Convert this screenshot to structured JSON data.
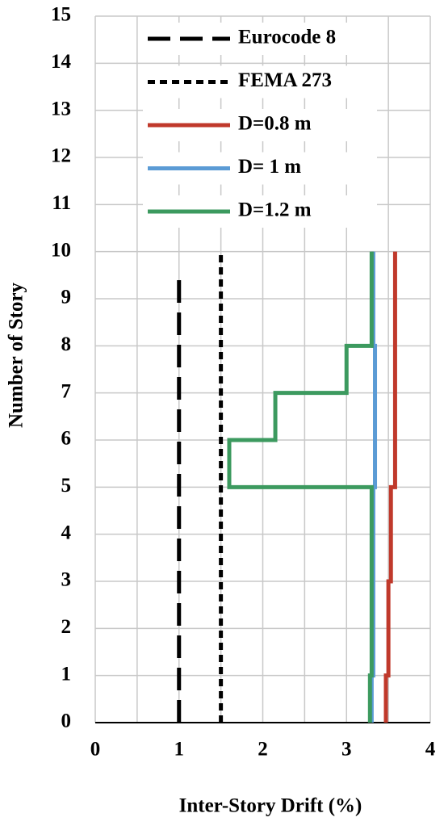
{
  "chart_data": {
    "type": "line",
    "xlabel": "Inter-Story Drift (%)",
    "ylabel": "Number of Story",
    "xlim": [
      0,
      4
    ],
    "xticks": [
      0,
      1,
      2,
      3,
      4
    ],
    "x_minor_ticks": [
      0.5,
      1.5,
      2.5,
      3.5
    ],
    "ylim": [
      0,
      15
    ],
    "yticks": [
      0,
      1,
      2,
      3,
      4,
      5,
      6,
      7,
      8,
      9,
      10,
      11,
      12,
      13,
      14,
      15
    ],
    "grid": true,
    "legend": "top-right",
    "series": [
      {
        "name": "Eurocode 8",
        "color": "#000000",
        "dash": "long",
        "x": [
          1,
          1
        ],
        "y": [
          0,
          9.6
        ]
      },
      {
        "name": "FEMA 273",
        "color": "#000000",
        "dash": "short",
        "x": [
          1.5,
          1.5
        ],
        "y": [
          0,
          10
        ]
      },
      {
        "name": "D=0.8 m",
        "color": "#c0392b",
        "dash": "solid",
        "x": [
          3.47,
          3.47,
          3.5,
          3.5,
          3.53,
          3.53,
          3.58,
          3.58
        ],
        "y": [
          0,
          1,
          1,
          3,
          3,
          5,
          5,
          10
        ]
      },
      {
        "name": "D= 1 m",
        "color": "#5b9bd5",
        "dash": "solid",
        "x": [
          3.3,
          3.3,
          3.32,
          3.32,
          3.34,
          3.34,
          3.32,
          3.32
        ],
        "y": [
          0,
          1,
          1,
          5,
          5,
          8,
          8,
          10
        ]
      },
      {
        "name": "D=1.2 m",
        "color": "#3c9a5f",
        "dash": "solid",
        "x": [
          3.28,
          3.28,
          3.3,
          3.3,
          1.6,
          1.6,
          2.15,
          2.15,
          3.0,
          3.0,
          3.3,
          3.3
        ],
        "y": [
          0,
          1,
          1,
          5,
          5,
          6,
          6,
          7,
          7,
          8,
          8,
          10
        ]
      }
    ]
  }
}
